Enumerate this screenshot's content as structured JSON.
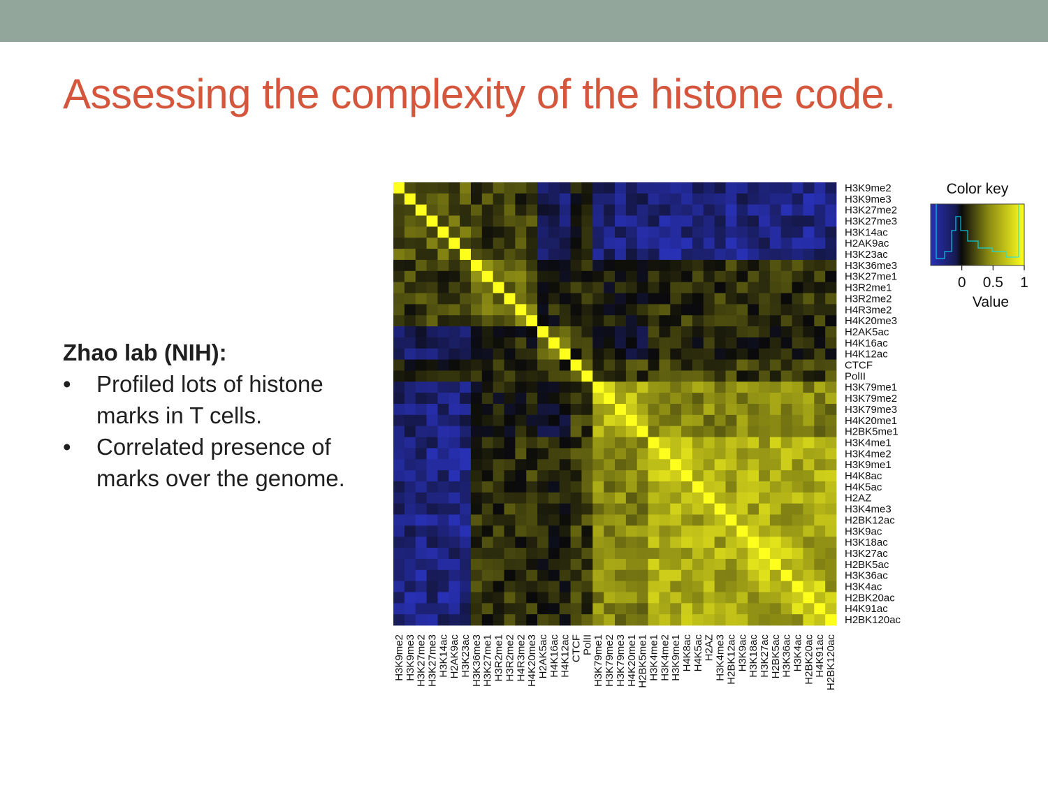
{
  "slide": {
    "title": "Assessing the complexity of the histone code.",
    "lab_heading": "Zhao lab (NIH):",
    "bullet_symbol": "•",
    "bullets": [
      "Profiled lots of histone marks in T cells.",
      "Correlated presence of marks over the genome."
    ],
    "colors": {
      "title": "#d4573d",
      "top_bar": "#93a69b"
    }
  },
  "chart_data": {
    "type": "heatmap",
    "labels": [
      "H3K9me2",
      "H3K9me3",
      "H3K27me2",
      "H3K27me3",
      "H3K14ac",
      "H2AK9ac",
      "H3K23ac",
      "H3K36me3",
      "H3K27me1",
      "H3R2me1",
      "H3R2me2",
      "H4R3me2",
      "H4K20me3",
      "H2AK5ac",
      "H4K16ac",
      "H4K12ac",
      "CTCF",
      "PolII",
      "H3K79me1",
      "H3K79me2",
      "H3K79me3",
      "H4K20me1",
      "H2BK5me1",
      "H3K4me1",
      "H3K4me2",
      "H3K9me1",
      "H4K8ac",
      "H4K5ac",
      "H2AZ",
      "H3K4me3",
      "H2BK12ac",
      "H3K9ac",
      "H3K18ac",
      "H3K27ac",
      "H2BK5ac",
      "H3K36ac",
      "H3K4ac",
      "H2BK20ac",
      "H4K91ac",
      "H2BK120ac"
    ],
    "groups": [
      [
        0,
        6
      ],
      [
        7,
        12
      ],
      [
        13,
        15
      ],
      [
        16,
        17
      ],
      [
        18,
        22
      ],
      [
        23,
        39
      ]
    ],
    "group_means": [
      [
        0.3,
        0.2,
        -0.25,
        0.0,
        -0.3,
        -0.35
      ],
      [
        0.2,
        0.35,
        0.1,
        0.1,
        0.05,
        0.15
      ],
      [
        -0.25,
        0.1,
        0.4,
        0.1,
        -0.05,
        0.1
      ],
      [
        0.0,
        0.1,
        0.1,
        0.3,
        0.2,
        0.2
      ],
      [
        -0.3,
        0.05,
        -0.05,
        0.2,
        0.65,
        0.5
      ],
      [
        -0.35,
        0.15,
        0.1,
        0.2,
        0.5,
        0.65
      ]
    ],
    "diagonal_value": 1.0,
    "color_scale": {
      "negative": "#2830b4",
      "zero": "#0a0a0a",
      "positive": "#ffff1e",
      "domain": [
        -0.5,
        1
      ]
    },
    "color_key": {
      "title": "Color key",
      "ticks": [
        0,
        0.5,
        1
      ],
      "tick_labels": [
        "0",
        "0.5",
        "1"
      ],
      "xlabel": "Value"
    }
  }
}
